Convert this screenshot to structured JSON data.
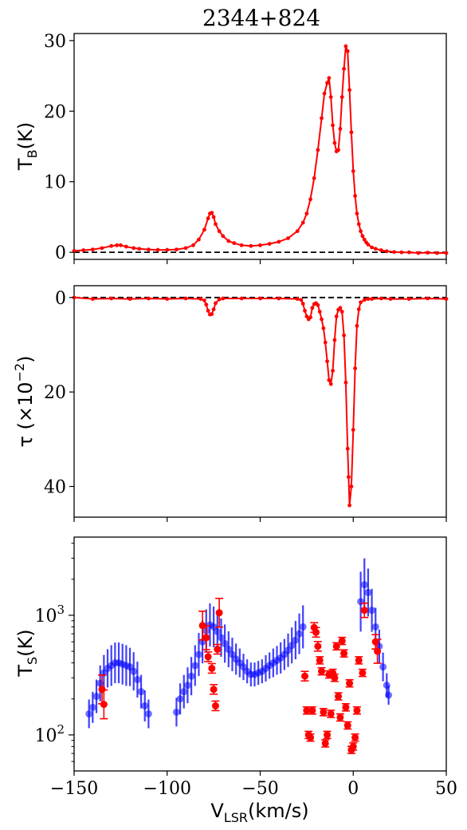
{
  "title": "2344+824",
  "colors": {
    "emission": "#ff0000",
    "absorption": "#ff0000",
    "spin_blue": "#0000ff",
    "spin_red": "#ff0000",
    "zero_line": "#000000"
  },
  "chart_data": [
    {
      "type": "line",
      "panel": "top",
      "ylabel": {
        "base": "T",
        "sub": "B",
        "tail": "(K)"
      },
      "xlim": [
        -150,
        50
      ],
      "ylim": [
        -1,
        31
      ],
      "yticks": [
        0,
        10,
        20,
        30
      ],
      "reference_line": {
        "y": 0,
        "style": "dashed"
      },
      "series": [
        {
          "x": [
            -150,
            -145,
            -140,
            -135,
            -130,
            -127,
            -125,
            -122,
            -118,
            -115,
            -110,
            -105,
            -100,
            -95,
            -90,
            -86,
            -83,
            -80,
            -78,
            -77,
            -76,
            -75,
            -74,
            -72,
            -70,
            -67,
            -64,
            -60,
            -55,
            -50,
            -45,
            -40,
            -35,
            -30,
            -27,
            -25,
            -23,
            -21,
            -19,
            -17,
            -15.5,
            -14,
            -13,
            -12,
            -11,
            -10,
            -9,
            -8,
            -7,
            -6,
            -5,
            -4,
            -3,
            -2,
            -1,
            0,
            1,
            2,
            3,
            4,
            5,
            6,
            7,
            8,
            10,
            12,
            15,
            18,
            22,
            26,
            30,
            35,
            40,
            45,
            50
          ],
          "y": [
            0.2,
            0.3,
            0.4,
            0.6,
            0.9,
            1.0,
            1.0,
            0.8,
            0.6,
            0.5,
            0.4,
            0.35,
            0.35,
            0.4,
            0.6,
            1.0,
            1.8,
            3.2,
            4.8,
            5.5,
            5.6,
            5.0,
            4.0,
            3.0,
            2.3,
            1.6,
            1.3,
            1.0,
            0.9,
            1.0,
            1.2,
            1.5,
            2.0,
            3.0,
            4.2,
            5.5,
            7.5,
            10.5,
            14.5,
            19.0,
            22.5,
            24.0,
            24.7,
            22.0,
            18.0,
            15.5,
            14.3,
            14.5,
            17.5,
            22.0,
            26.0,
            29.2,
            28.5,
            23.0,
            17.0,
            11.5,
            8.0,
            5.5,
            4.0,
            3.0,
            2.3,
            1.8,
            1.4,
            1.1,
            0.7,
            0.5,
            0.3,
            0.15,
            0.05,
            0.0,
            0.0,
            -0.1,
            -0.05,
            -0.1,
            -0.1
          ]
        }
      ]
    },
    {
      "type": "line",
      "panel": "middle",
      "ylabel": {
        "base": "τ (×10",
        "sup": "−2",
        "tail": ")"
      },
      "ylim": [
        46.5,
        -2.5
      ],
      "yticks": [
        0,
        20,
        40
      ],
      "reference_line": {
        "y": 0,
        "style": "dashed"
      },
      "series": [
        {
          "x": [
            -150,
            -140,
            -130,
            -120,
            -110,
            -100,
            -90,
            -82,
            -80,
            -79,
            -78,
            -77,
            -76,
            -75,
            -74,
            -72,
            -70,
            -60,
            -50,
            -40,
            -30,
            -28,
            -27,
            -26,
            -25,
            -24,
            -23,
            -22,
            -21,
            -20,
            -19,
            -18,
            -17,
            -16,
            -15,
            -14,
            -13,
            -12,
            -11,
            -10,
            -9,
            -8,
            -7,
            -6,
            -5,
            -4,
            -3,
            -2.5,
            -2,
            -1,
            0,
            1,
            2,
            3,
            4,
            6,
            8,
            10,
            15,
            20,
            30,
            40,
            50
          ],
          "y": [
            0,
            0.3,
            0.2,
            0.3,
            0.2,
            0.3,
            0.2,
            0.3,
            0.6,
            1.5,
            2.8,
            3.6,
            3.5,
            2.5,
            1.2,
            0.4,
            0.2,
            0.2,
            0.2,
            0.2,
            0.3,
            0.5,
            1.3,
            2.8,
            4.0,
            4.6,
            4.2,
            2.2,
            1.4,
            1.2,
            1.6,
            3.0,
            4.6,
            6.5,
            9.5,
            13.5,
            17.5,
            18.3,
            15.5,
            9.0,
            4.0,
            2.6,
            2.2,
            3.0,
            8.0,
            18.0,
            32.0,
            38.0,
            44.0,
            40.0,
            28.0,
            15.0,
            6.0,
            2.5,
            1.0,
            0.5,
            0.3,
            0.3,
            0.2,
            0.3,
            0.3,
            0.2,
            0.3
          ]
        }
      ]
    },
    {
      "type": "scatter",
      "panel": "bottom",
      "xlabel": {
        "base": "V",
        "sub": "LSR",
        "tail": "(km/s)"
      },
      "ylabel": {
        "base": "T",
        "sub": "S",
        "tail": "(K)"
      },
      "xlim": [
        -150,
        50
      ],
      "ylim": [
        50,
        4500
      ],
      "yscale": "log",
      "yticks": [
        {
          "value": 100,
          "mantissa": "10",
          "exp": "2"
        },
        {
          "value": 1000,
          "mantissa": "10",
          "exp": "3"
        }
      ],
      "xticks": [
        "−150",
        "−100",
        "−50",
        "0",
        "50"
      ],
      "series": [
        {
          "style": "blue",
          "x": [
            -142,
            -140,
            -138,
            -136,
            -134,
            -132,
            -130,
            -128,
            -126,
            -124,
            -122,
            -120,
            -118,
            -116,
            -114,
            -112,
            -110,
            -95,
            -93,
            -91,
            -89,
            -87,
            -85,
            -83,
            -81,
            -79,
            -77,
            -75,
            -73,
            -71,
            -69,
            -67,
            -65,
            -63,
            -61,
            -59,
            -57,
            -55,
            -53,
            -51,
            -49,
            -47,
            -45,
            -43,
            -41,
            -39,
            -37,
            -35,
            -33,
            -31,
            -29,
            -27,
            4,
            6,
            8,
            10,
            12,
            14,
            16,
            18,
            19
          ],
          "y": [
            150,
            170,
            210,
            270,
            330,
            360,
            380,
            400,
            400,
            390,
            380,
            370,
            340,
            290,
            230,
            175,
            150,
            155,
            200,
            230,
            260,
            310,
            380,
            470,
            600,
            740,
            830,
            800,
            730,
            650,
            580,
            520,
            470,
            430,
            400,
            370,
            340,
            320,
            320,
            330,
            340,
            360,
            380,
            400,
            420,
            440,
            470,
            510,
            560,
            620,
            700,
            800,
            1300,
            1800,
            1550,
            1100,
            800,
            550,
            370,
            260,
            215
          ],
          "yerr": [
            0.12,
            0.13,
            0.14,
            0.15,
            0.15,
            0.16,
            0.17,
            0.17,
            0.17,
            0.17,
            0.17,
            0.16,
            0.16,
            0.15,
            0.14,
            0.13,
            0.12,
            0.12,
            0.13,
            0.14,
            0.15,
            0.16,
            0.17,
            0.18,
            0.18,
            0.18,
            0.18,
            0.17,
            0.17,
            0.16,
            0.16,
            0.15,
            0.14,
            0.13,
            0.12,
            0.11,
            0.1,
            0.1,
            0.1,
            0.1,
            0.1,
            0.11,
            0.11,
            0.12,
            0.12,
            0.13,
            0.13,
            0.14,
            0.15,
            0.16,
            0.17,
            0.18,
            0.25,
            0.22,
            0.2,
            0.18,
            0.16,
            0.14,
            0.12,
            0.1,
            0.08
          ]
        },
        {
          "style": "red",
          "x": [
            -135,
            -134,
            -81,
            -79,
            -78,
            -76,
            -75,
            -74,
            -73,
            -72,
            -26,
            -25,
            -24,
            -23,
            -22,
            -21,
            -20,
            -19,
            -18,
            -17,
            -16,
            -15,
            -14,
            -13,
            -12,
            -11,
            -10,
            -9,
            -8,
            -7,
            -6,
            -5,
            -4,
            -3,
            -2,
            -1,
            0,
            1,
            2,
            3,
            5,
            6,
            12,
            13
          ],
          "y": [
            240,
            180,
            820,
            650,
            450,
            360,
            240,
            175,
            520,
            1050,
            310,
            160,
            100,
            95,
            160,
            790,
            720,
            550,
            420,
            340,
            155,
            85,
            100,
            320,
            150,
            330,
            300,
            550,
            210,
            140,
            610,
            480,
            170,
            120,
            270,
            75,
            80,
            95,
            160,
            420,
            330,
            1100,
            600,
            500
          ],
          "yerr": [
            0.12,
            0.12,
            0.12,
            0.1,
            0.04,
            0.04,
            0.04,
            0.04,
            0.04,
            0.12,
            0.04,
            0.03,
            0.03,
            0.03,
            0.03,
            0.04,
            0.04,
            0.04,
            0.03,
            0.03,
            0.03,
            0.03,
            0.03,
            0.03,
            0.03,
            0.03,
            0.03,
            0.03,
            0.03,
            0.03,
            0.03,
            0.03,
            0.03,
            0.03,
            0.03,
            0.03,
            0.03,
            0.03,
            0.03,
            0.03,
            0.03,
            0.06,
            0.06,
            0.1
          ]
        }
      ]
    }
  ]
}
